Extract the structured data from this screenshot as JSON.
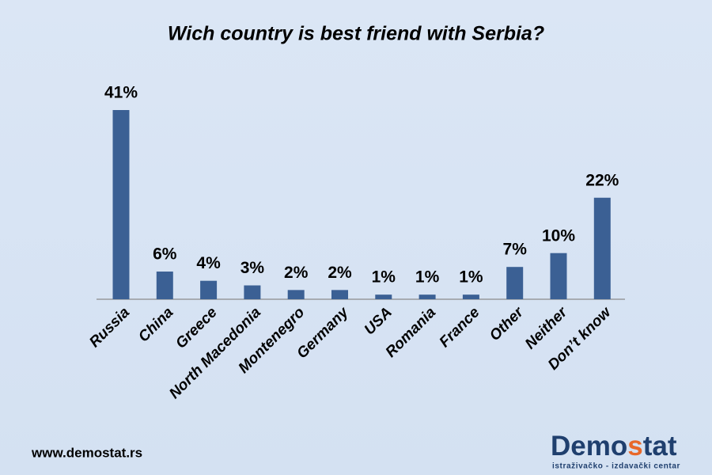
{
  "chart_data": {
    "type": "bar",
    "title": "Wich country is best friend with Serbia?",
    "categories": [
      "Russia",
      "China",
      "Greece",
      "North Macedonia",
      "Montenegro",
      "Germany",
      "USA",
      "Romania",
      "France",
      "Other",
      "Neither",
      "Don’t know"
    ],
    "values": [
      41,
      6,
      4,
      3,
      2,
      2,
      1,
      1,
      1,
      7,
      10,
      22
    ],
    "value_labels": [
      "41%",
      "6%",
      "4%",
      "3%",
      "2%",
      "2%",
      "1%",
      "1%",
      "1%",
      "7%",
      "10%",
      "22%"
    ],
    "color": "#3b6094"
  },
  "footer": {
    "website": "www.demostat.rs",
    "logo": {
      "parts": [
        "Demo",
        "s",
        "tat"
      ],
      "tagline": "istraživačko - izdavački  centar"
    }
  }
}
